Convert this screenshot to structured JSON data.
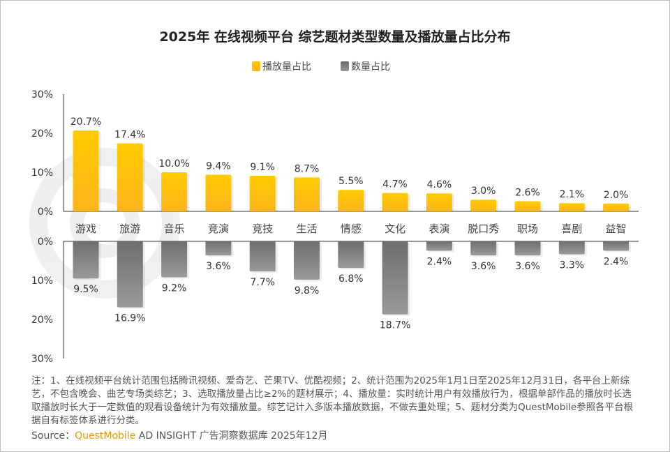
{
  "chart_data": {
    "type": "bar",
    "title": "2025年 在线视频平台 综艺题材类型数量及播放量占比分布",
    "categories": [
      "游戏",
      "旅游",
      "音乐",
      "竞演",
      "竞技",
      "生活",
      "情感",
      "文化",
      "表演",
      "脱口秀",
      "职场",
      "喜剧",
      "益智"
    ],
    "series": [
      {
        "name": "播放量占比",
        "values": [
          20.7,
          17.4,
          10.0,
          9.4,
          9.1,
          8.7,
          5.5,
          4.7,
          4.6,
          3.0,
          2.6,
          2.1,
          2.0
        ],
        "color": "#ffc800"
      },
      {
        "name": "数量占比",
        "values": [
          9.5,
          16.9,
          9.2,
          3.6,
          7.7,
          9.8,
          6.8,
          18.7,
          2.4,
          3.6,
          3.6,
          3.3,
          2.4
        ],
        "color": "#7a7a7a"
      }
    ],
    "ylim": [
      0,
      30
    ],
    "yticks": [
      "0%",
      "10%",
      "20%",
      "30%"
    ],
    "legend": "top-center",
    "unit": "%"
  },
  "note": "注：1、在线视频平台统计范围包括腾讯视频、爱奇艺、芒果TV、优酷视频；2、统计范围为2025年1月1日至2025年12月31日，各平台上新综艺，不包含晚会、曲艺专场类综艺；3、选取播放量占比≥2%的题材展示；4、播放量：实时统计用户有效播放行为，根据单部作品的播放时长选取播放时长大于一定数值的观看设备统计为有效播放量。综艺记计入多版本播放数据，不做去重处理；5、题材分类为QuestMobile参照各平台根据自有标签体系进行分类。",
  "source": {
    "label": "Source：",
    "brand": "QuestMobile",
    "rest": " AD INSIGHT 广告洞察数据库 2025年12月"
  },
  "watermark": "QUESTMOBILE"
}
